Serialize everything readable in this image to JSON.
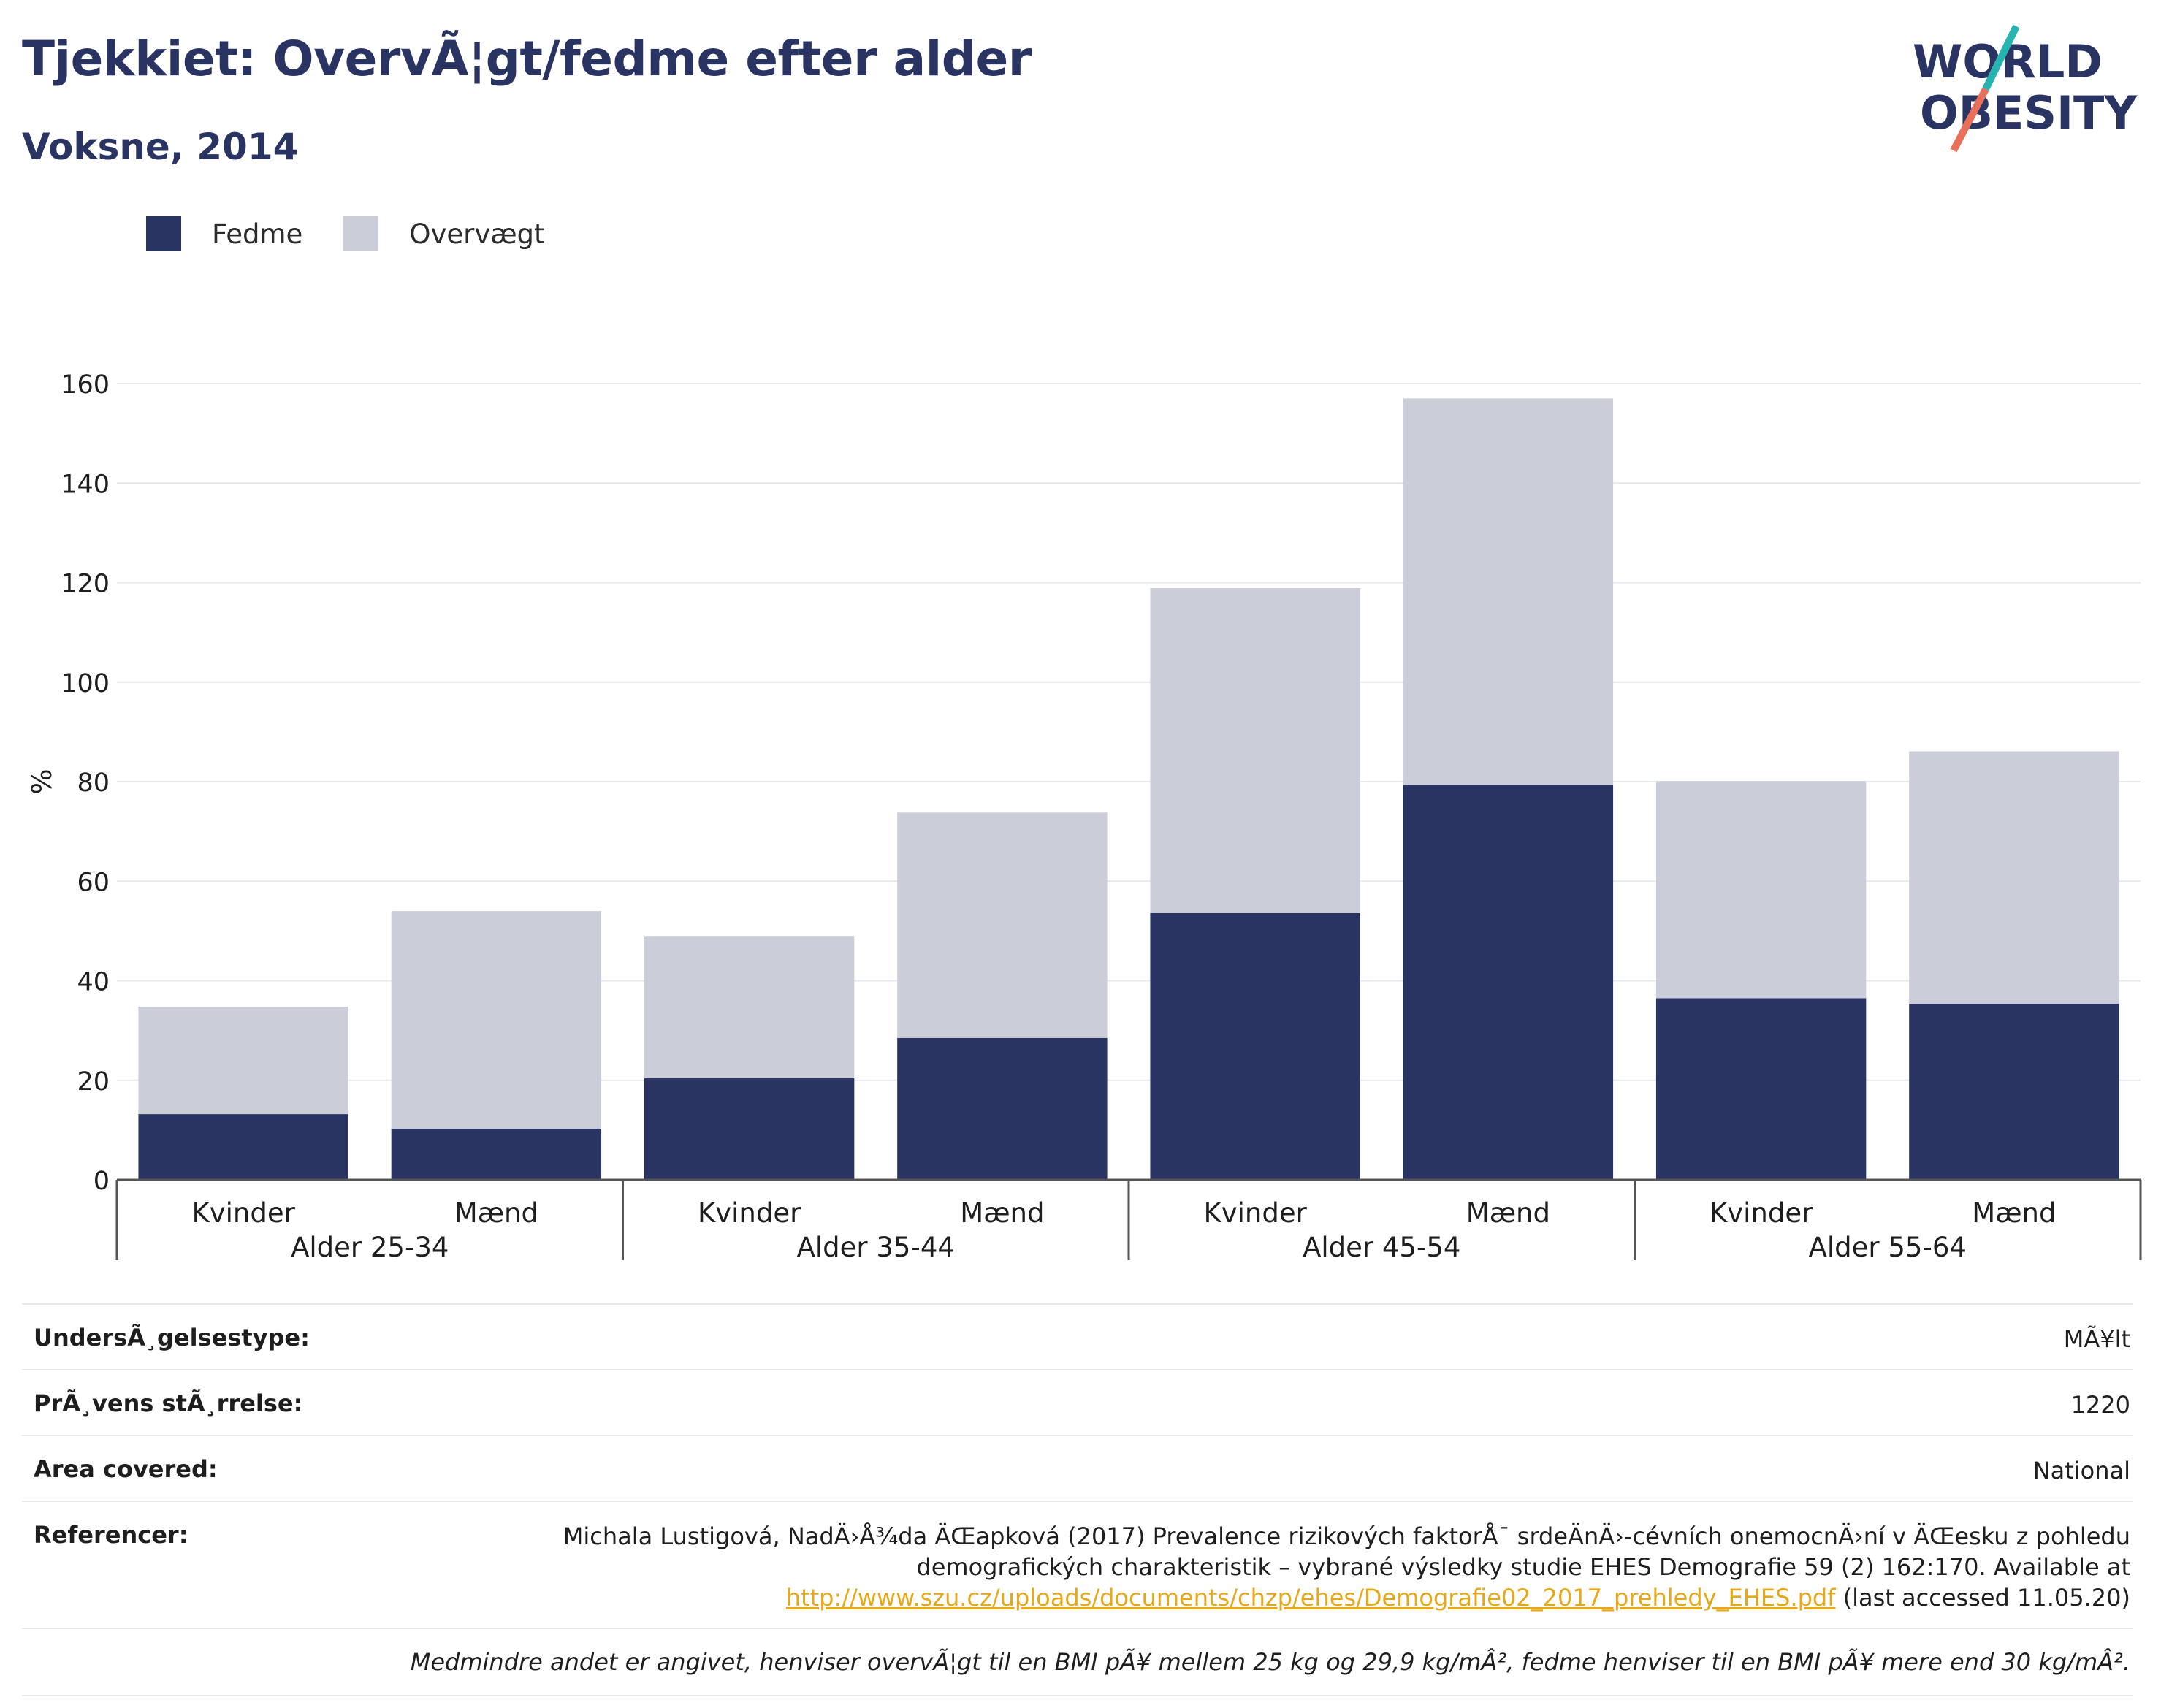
{
  "header": {
    "title": "Tjekkiet: OvervÃ¦gt/fedme efter alder",
    "subtitle": "Voksne, 2014"
  },
  "logo": {
    "line1": "WORLD",
    "line2": "OBESITY"
  },
  "colors": {
    "fedme": "#2a3462",
    "overvaegt": "#cbcdd9",
    "accent_teal": "#27b4b0",
    "accent_red": "#e8705a",
    "link": "#e6a817"
  },
  "chart_data": {
    "type": "bar",
    "stacked": true,
    "ylabel": "%",
    "ylim": [
      0,
      160
    ],
    "yticks": [
      0,
      20,
      40,
      60,
      80,
      100,
      120,
      140,
      160
    ],
    "grid": true,
    "legend_position": "top-left",
    "categories": [
      "Kvinder",
      "Mænd",
      "Kvinder",
      "Mænd",
      "Kvinder",
      "Mænd",
      "Kvinder",
      "Mænd"
    ],
    "groups": [
      "Alder 25-34",
      "Alder 35-44",
      "Alder 45-54",
      "Alder 55-64"
    ],
    "series": [
      {
        "name": "Fedme",
        "values": [
          13.2,
          10.3,
          20.4,
          28.5,
          53.6,
          79.4,
          36.5,
          35.4
        ]
      },
      {
        "name": "Overvægt",
        "values": [
          21.6,
          43.7,
          28.6,
          45.3,
          65.3,
          77.6,
          43.6,
          50.7
        ]
      }
    ]
  },
  "info": {
    "rows": [
      {
        "label": "UndersÃ¸gelsestype:",
        "value": "MÃ¥lt"
      },
      {
        "label": "PrÃ¸vens stÃ¸rrelse:",
        "value": "1220"
      },
      {
        "label": "Area covered:",
        "value": "National"
      }
    ],
    "reference_label": "Referencer:",
    "reference_text_1": "Michala Lustigová, NadÄ›Å¾da ÄŒapková (2017) Prevalence rizikových faktorÅ¯ srdeÄnÄ›-cévních onemocnÄ›ní v ÄŒesku z pohledu demografických charakteristik – vybrané výsledky studie EHES Demografie 59 (2) 162:170. Available at",
    "reference_link": "http://www.szu.cz/uploads/documents/chzp/ehes/Demografie02_2017_prehledy_EHES.pdf",
    "reference_text_2": "(last accessed 11.05.20)",
    "note": "Medmindre andet er angivet, henviser overvÃ¦gt til en BMI pÃ¥ mellem 25 kg og 29,9 kg/mÂ², fedme henviser til en BMI pÃ¥ mere end 30 kg/mÂ²."
  }
}
